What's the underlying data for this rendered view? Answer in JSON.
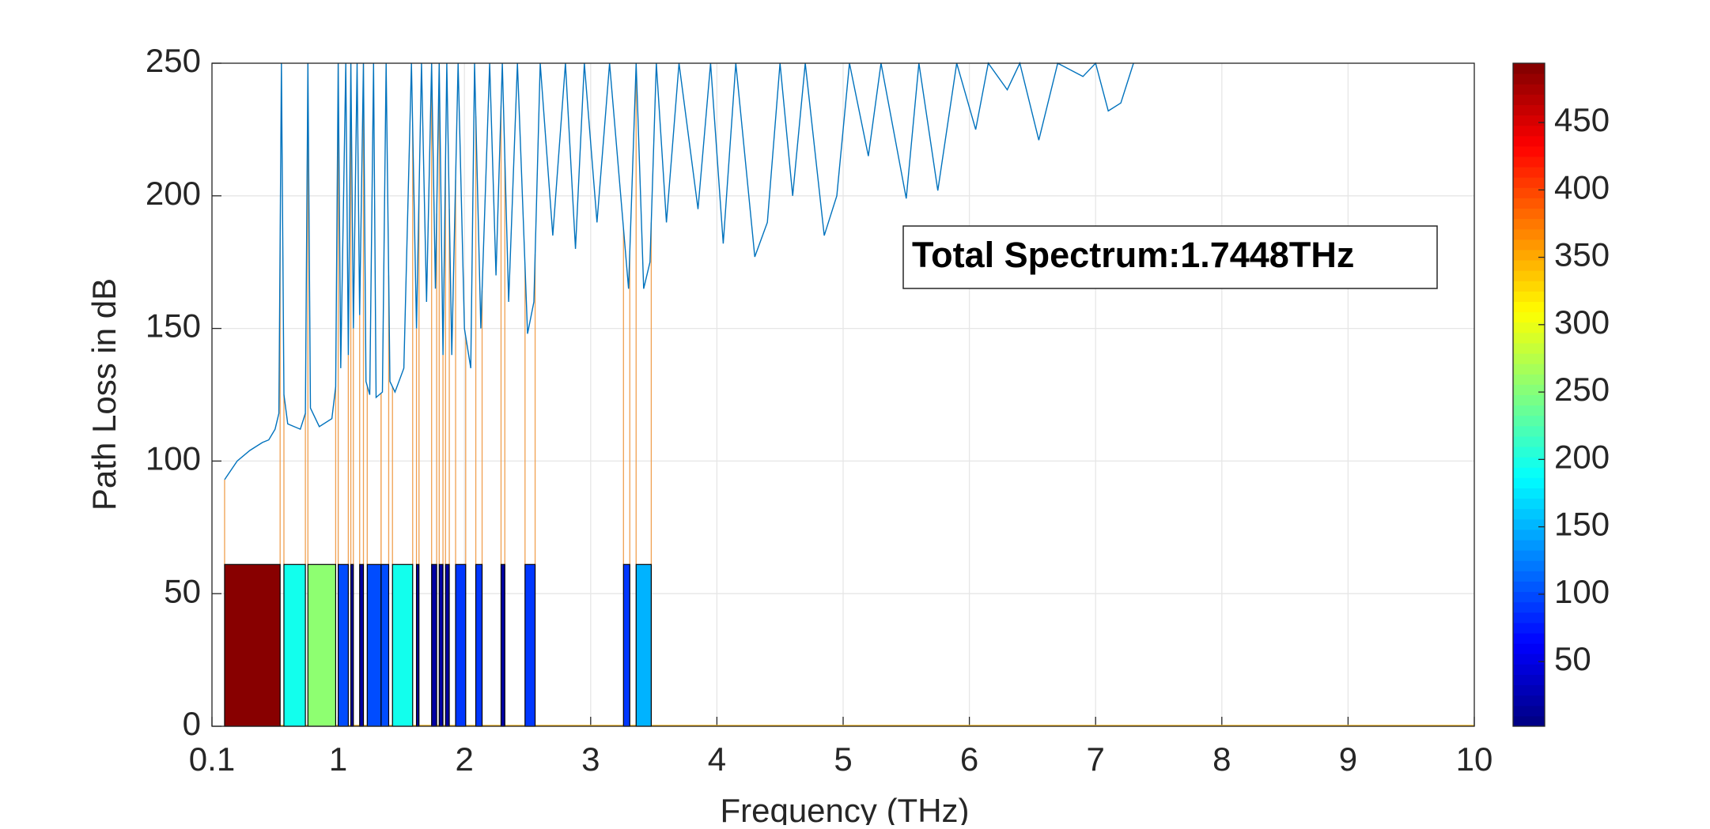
{
  "chart_data": {
    "type": "line",
    "xlabel": "Frequency (THz)",
    "ylabel": "Path Loss in dB",
    "xlim": [
      0,
      10
    ],
    "xticks": [
      {
        "value": 0,
        "label": "0.1"
      },
      1,
      2,
      3,
      4,
      5,
      6,
      7,
      8,
      9,
      10
    ],
    "ylim": [
      0,
      250
    ],
    "yticks": [
      0,
      50,
      100,
      150,
      200,
      250
    ],
    "grid": true,
    "annotation": "Total Spectrum:1.7448THz",
    "series": [
      {
        "color": "#0072bd",
        "x": [
          0.1,
          0.2,
          0.3,
          0.4,
          0.45,
          0.5,
          0.53,
          0.55,
          0.57,
          0.6,
          0.7,
          0.74,
          0.76,
          0.78,
          0.85,
          0.95,
          0.98,
          1.0,
          1.02,
          1.06,
          1.08,
          1.1,
          1.12,
          1.15,
          1.17,
          1.2,
          1.22,
          1.25,
          1.28,
          1.3,
          1.35,
          1.38,
          1.41,
          1.45,
          1.52,
          1.58,
          1.62,
          1.66,
          1.7,
          1.74,
          1.77,
          1.8,
          1.83,
          1.86,
          1.9,
          1.95,
          2.0,
          2.05,
          2.08,
          2.13,
          2.2,
          2.25,
          2.3,
          2.35,
          2.42,
          2.5,
          2.55,
          2.6,
          2.7,
          2.8,
          2.88,
          2.95,
          3.05,
          3.15,
          3.3,
          3.36,
          3.42,
          3.47,
          3.52,
          3.6,
          3.7,
          3.85,
          3.95,
          4.05,
          4.15,
          4.3,
          4.4,
          4.5,
          4.6,
          4.7,
          4.85,
          4.95,
          5.05,
          5.2,
          5.3,
          5.5,
          5.6,
          5.75,
          5.9,
          6.05,
          6.15,
          6.3,
          6.4,
          6.55,
          6.7,
          6.9,
          7.0,
          7.1,
          7.2,
          7.3
        ],
        "values": [
          93,
          100,
          104,
          107,
          108,
          112,
          118,
          250,
          125,
          114,
          112,
          118,
          250,
          120,
          113,
          116,
          128,
          250,
          135,
          250,
          140,
          250,
          150,
          250,
          155,
          250,
          130,
          125,
          250,
          124,
          126,
          250,
          130,
          126,
          135,
          250,
          150,
          250,
          160,
          250,
          165,
          250,
          140,
          250,
          140,
          250,
          150,
          135,
          250,
          150,
          250,
          170,
          250,
          160,
          250,
          148,
          160,
          250,
          185,
          250,
          180,
          250,
          190,
          250,
          165,
          250,
          165,
          175,
          250,
          190,
          250,
          195,
          250,
          182,
          250,
          177,
          190,
          250,
          200,
          250,
          185,
          200,
          250,
          215,
          250,
          199,
          250,
          202,
          250,
          225,
          250,
          240,
          250,
          221,
          250,
          245,
          250,
          232,
          235,
          250
        ]
      }
    ],
    "windows": {
      "x_start": [
        0.1,
        0.57,
        0.76,
        1.0,
        1.1,
        1.17,
        1.23,
        1.34,
        1.43,
        1.62,
        1.74,
        1.8,
        1.85,
        1.93,
        2.09,
        2.29,
        2.48,
        3.26,
        3.36
      ],
      "x_end": [
        0.54,
        0.74,
        0.98,
        1.08,
        1.12,
        1.2,
        1.34,
        1.4,
        1.59,
        1.64,
        1.78,
        1.83,
        1.88,
        2.01,
        2.14,
        2.32,
        2.56,
        3.31,
        3.48
      ],
      "heights": [
        61,
        61,
        61,
        61,
        61,
        61,
        61,
        61,
        61,
        61,
        61,
        61,
        61,
        61,
        61,
        61,
        61,
        61,
        61
      ],
      "color_values": [
        490,
        195,
        255,
        100,
        20,
        20,
        100,
        100,
        195,
        20,
        20,
        20,
        20,
        90,
        90,
        20,
        90,
        90,
        150
      ]
    },
    "colorbar": {
      "clim": [
        2,
        494
      ],
      "ticks": [
        50,
        100,
        150,
        200,
        250,
        300,
        350,
        400,
        450
      ],
      "colormap": "jet"
    }
  }
}
